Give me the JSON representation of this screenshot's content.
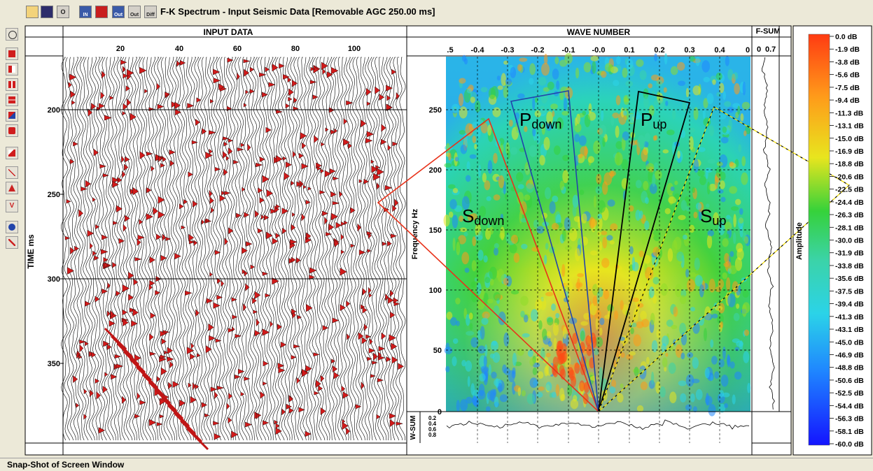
{
  "window": {
    "title": "F-K Spectrum - Input Seismic Data [Removable AGC 250.00 ms]"
  },
  "toolbar": {
    "buttons": [
      {
        "icon": "open-folder-icon",
        "label": ""
      },
      {
        "icon": "save-disk-icon",
        "label": ""
      },
      {
        "icon": "circle-o-icon",
        "label": "O"
      },
      {
        "icon": "input-icon",
        "label": "IN"
      },
      {
        "icon": "output-red-icon",
        "label": ""
      },
      {
        "icon": "output-icon",
        "label": "Out"
      },
      {
        "icon": "output-wave-icon",
        "label": "Out"
      },
      {
        "icon": "difference-icon",
        "label": "Diff"
      }
    ]
  },
  "input_panel": {
    "title": "INPUT DATA",
    "y_axis_label": "TIME ms",
    "x_ticks": [
      "20",
      "40",
      "60",
      "80",
      "100"
    ],
    "y_ticks": [
      "200",
      "250",
      "300",
      "350"
    ]
  },
  "fk_panel": {
    "title": "WAVE NUMBER",
    "y_axis_label": "Frequency Hz",
    "x_ticks": [
      ".5",
      "-0.4",
      "-0.3",
      "-0.2",
      "-0.1",
      "-0.0",
      "0.1",
      "0.2",
      "0.3",
      "0.4",
      "0"
    ],
    "y_ticks": [
      "250",
      "200",
      "150",
      "100",
      "50",
      "0"
    ],
    "zones": {
      "s_down": {
        "main": "S",
        "sub": "down"
      },
      "p_down": {
        "main": "P",
        "sub": "down"
      },
      "p_up": {
        "main": "P",
        "sub": "up"
      },
      "s_up": {
        "main": "S",
        "sub": "up"
      }
    },
    "wsum_label": "W-SUM",
    "wsum_ticks": [
      "0.2",
      "0.4",
      "0.6",
      "0.8"
    ]
  },
  "fsum_panel": {
    "title": "F-SUM",
    "ticks": [
      "0",
      "0.7"
    ]
  },
  "amplitude_panel": {
    "axis_label": "Amplitude",
    "labels": [
      "0.0 dB",
      "-1.9 dB",
      "-3.8 dB",
      "-5.6 dB",
      "-7.5 dB",
      "-9.4 dB",
      "-11.3 dB",
      "-13.1 dB",
      "-15.0 dB",
      "-16.9 dB",
      "-18.8 dB",
      "-20.6 dB",
      "-22.5 dB",
      "-24.4 dB",
      "-26.3 dB",
      "-28.1 dB",
      "-30.0 dB",
      "-31.9 dB",
      "-33.8 dB",
      "-35.6 dB",
      "-37.5 dB",
      "-39.4 dB",
      "-41.3 dB",
      "-43.1 dB",
      "-45.0 dB",
      "-46.9 dB",
      "-48.8 dB",
      "-50.6 dB",
      "-52.5 dB",
      "-54.4 dB",
      "-56.3 dB",
      "-58.1 dB",
      "-60.0 dB"
    ],
    "colors": {
      "top": "#ff3b12",
      "upper": "#ff9a1a",
      "mid_upper": "#e8e51e",
      "mid": "#36d23a",
      "mid_lower": "#2bd3e8",
      "lower": "#1f86ff",
      "bottom": "#1414ff"
    }
  },
  "left_tools": [
    "glasses-icon",
    "single-panel-icon",
    "split-vertical-icon",
    "split-vertical-2-icon",
    "split-horizontal-icon",
    "pick-icon",
    "wiggle-icon",
    "zoom-icon",
    "cross-icon",
    "arrow-up-icon",
    "velocity-icon",
    "run-icon",
    "cancel-run-icon"
  ],
  "status_bar": {
    "text": "Snap-Shot of Screen Window"
  }
}
